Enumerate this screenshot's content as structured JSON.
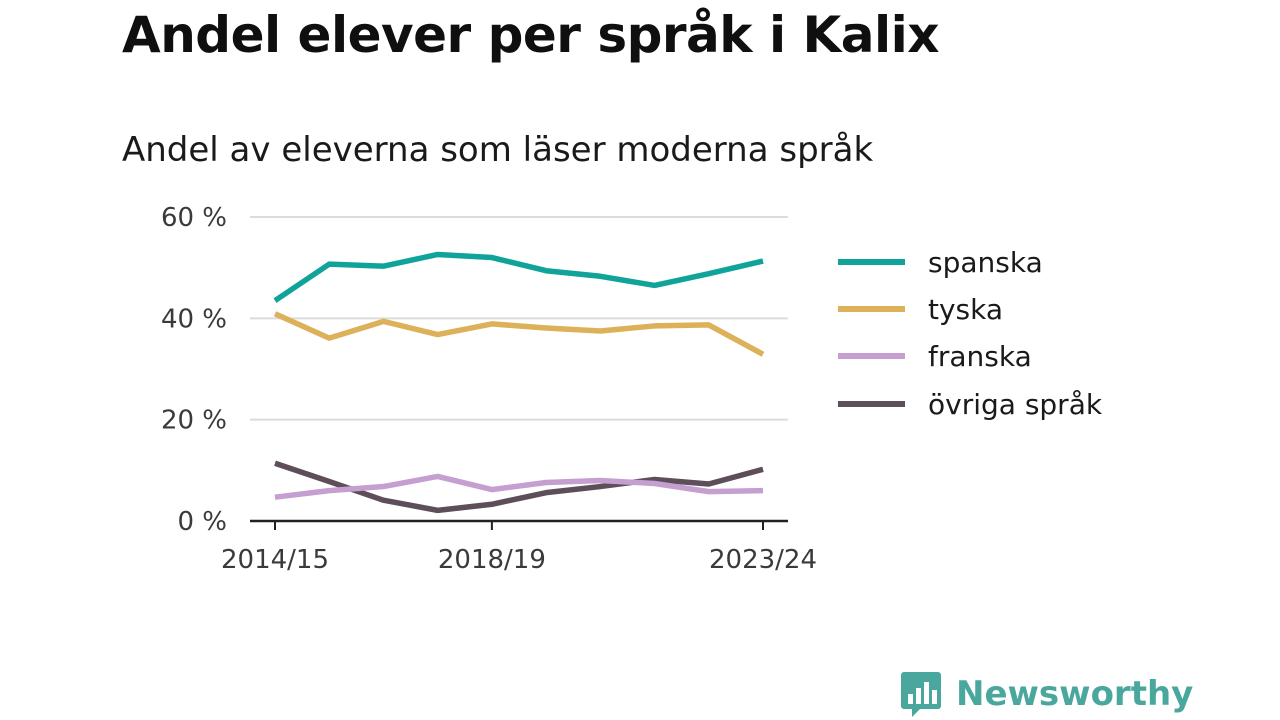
{
  "title": "Andel elever per språk i Kalix",
  "subtitle": "Andel av eleverna som läser moderna språk",
  "brand": {
    "name": "Newsworthy",
    "color": "#4aa79d"
  },
  "chart_data": {
    "type": "line",
    "x": [
      "2014/15",
      "2015/16",
      "2016/17",
      "2017/18",
      "2018/19",
      "2019/20",
      "2020/21",
      "2021/22",
      "2022/23",
      "2023/24"
    ],
    "x_tick_labels": [
      "2014/15",
      "2018/19",
      "2023/24"
    ],
    "ylim": [
      0,
      60
    ],
    "y_ticks": [
      0,
      20,
      40,
      60
    ],
    "y_tick_labels": [
      "0 %",
      "20 %",
      "40 %",
      "60 %"
    ],
    "grid": true,
    "legend_position": "right",
    "series": [
      {
        "name": "spanska",
        "color": "#10a39a",
        "values": [
          43.5,
          50.7,
          50.3,
          52.6,
          52.0,
          49.4,
          48.3,
          46.5,
          48.8,
          51.3
        ]
      },
      {
        "name": "tyska",
        "color": "#dcb159",
        "values": [
          40.9,
          36.1,
          39.4,
          36.8,
          38.9,
          38.1,
          37.5,
          38.5,
          38.7,
          32.9
        ]
      },
      {
        "name": "franska",
        "color": "#c49fd0",
        "values": [
          4.7,
          6.0,
          6.8,
          8.8,
          6.2,
          7.6,
          8.0,
          7.4,
          5.8,
          6.0
        ]
      },
      {
        "name": "övriga språk",
        "color": "#5d4e59",
        "values": [
          11.4,
          7.8,
          4.1,
          2.1,
          3.3,
          5.6,
          6.8,
          8.2,
          7.3,
          10.2
        ]
      }
    ]
  }
}
